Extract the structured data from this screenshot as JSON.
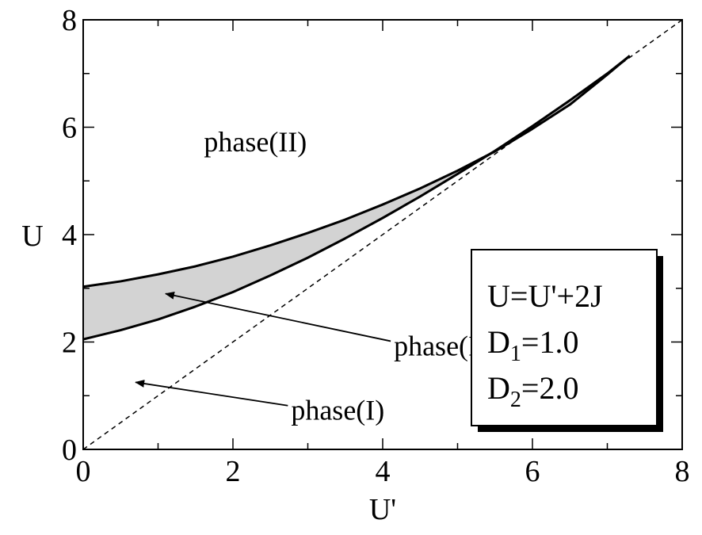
{
  "chart_data": {
    "type": "line",
    "title": "",
    "xlabel": "U'",
    "ylabel": "U",
    "xlim": [
      0,
      8
    ],
    "ylim": [
      0,
      8
    ],
    "xticks": [
      "0",
      "2",
      "4",
      "6",
      "8"
    ],
    "yticks": [
      "0",
      "2",
      "4",
      "6",
      "8"
    ],
    "grid": false,
    "series": [
      {
        "role": "upper-boundary",
        "x": [
          0,
          0.5,
          1,
          1.5,
          2,
          2.5,
          3,
          3.5,
          4,
          4.5,
          5,
          5.5,
          6,
          6.5,
          7,
          7.3
        ],
        "y": [
          3.03,
          3.13,
          3.26,
          3.41,
          3.59,
          3.8,
          4.03,
          4.28,
          4.56,
          4.86,
          5.19,
          5.55,
          5.97,
          6.42,
          6.98,
          7.33
        ]
      },
      {
        "role": "lower-boundary",
        "x": [
          0,
          0.5,
          1,
          1.5,
          2,
          2.5,
          3,
          3.5,
          4,
          4.5,
          5,
          5.5,
          6,
          6.5,
          7,
          7.3
        ],
        "y": [
          2.05,
          2.22,
          2.42,
          2.66,
          2.93,
          3.24,
          3.57,
          3.93,
          4.31,
          4.71,
          5.13,
          5.56,
          6.02,
          6.5,
          7.0,
          7.33
        ]
      },
      {
        "role": "diagonal-dashed",
        "x": [
          0,
          8
        ],
        "y": [
          0,
          8
        ]
      }
    ],
    "annotations": [
      {
        "text": "phase(II)",
        "x": 2.3,
        "y": 5.55
      },
      {
        "text": "phase(III)",
        "x": 4.9,
        "y": 1.75,
        "arrow_to": [
          1.1,
          2.9
        ]
      },
      {
        "text": "phase(I)",
        "x": 3.4,
        "y": 0.55,
        "arrow_to": [
          0.7,
          1.25
        ]
      }
    ],
    "legend_box": {
      "placement": "bottom-right",
      "lines": [
        {
          "main": "U=U'+2J",
          "sub": "",
          "rest": ""
        },
        {
          "main": "D",
          "sub": "1",
          "rest": "=1.0"
        },
        {
          "main": "D",
          "sub": "2",
          "rest": "=2.0"
        }
      ]
    },
    "shaded_region_color": "#d3d3d3"
  }
}
